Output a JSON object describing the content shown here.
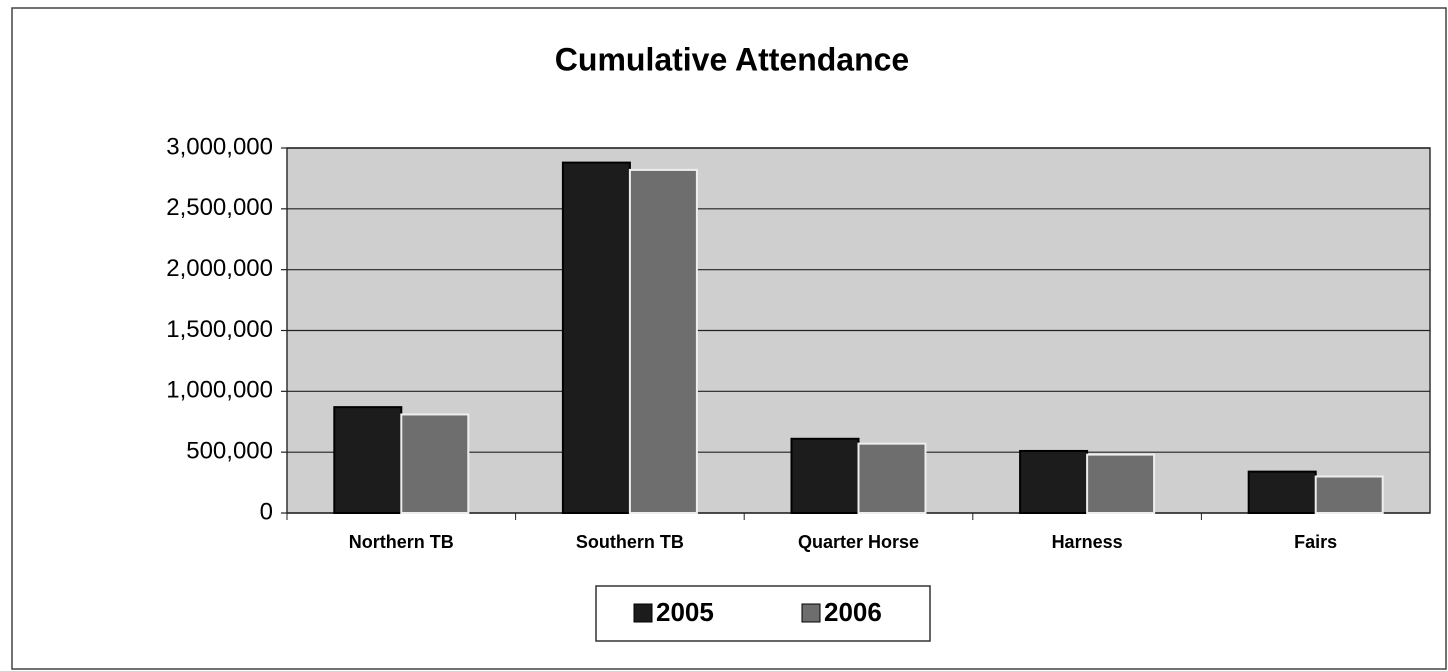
{
  "chart_data": {
    "type": "bar",
    "title": "Cumulative Attendance",
    "categories": [
      "Northern TB",
      "Southern TB",
      "Quarter Horse",
      "Harness",
      "Fairs"
    ],
    "series": [
      {
        "name": "2005",
        "color": "#1c1c1c",
        "values": [
          870000,
          2880000,
          610000,
          510000,
          340000
        ]
      },
      {
        "name": "2006",
        "color": "#6e6e6e",
        "values": [
          810000,
          2820000,
          570000,
          480000,
          300000
        ]
      }
    ],
    "ylim": [
      0,
      3000000
    ],
    "yticks": [
      0,
      {
        "value": 500000,
        "label": "500,000"
      },
      {
        "value": 1000000,
        "label": "1,000,000"
      },
      {
        "value": 1500000,
        "label": "1,500,000"
      },
      {
        "value": 2000000,
        "label": "2,000,000"
      },
      {
        "value": 2500000,
        "label": "2,500,000"
      },
      {
        "value": 3000000,
        "label": "3,000,000"
      }
    ],
    "grid": true,
    "legend": "bottom"
  }
}
